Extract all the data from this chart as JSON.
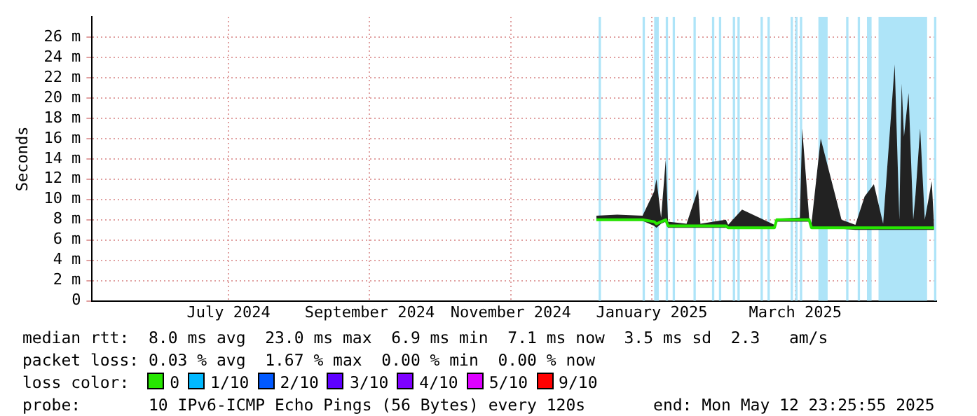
{
  "chart_data": {
    "type": "line",
    "ylabel": "Seconds",
    "legend": "bottom",
    "legend_title": "loss color:",
    "grid": true,
    "marker": "none",
    "xlim": [
      "2024-05-12",
      "2025-05-12"
    ],
    "xticks": [
      {
        "value": "2024-07-10",
        "label": "July 2024"
      },
      {
        "value": "2024-09-09",
        "label": "September 2024"
      },
      {
        "value": "2024-11-09",
        "label": "November 2024"
      },
      {
        "value": "2025-01-09",
        "label": "January 2025"
      },
      {
        "value": "2025-03-12",
        "label": "March 2025"
      }
    ],
    "ylim": [
      0,
      28
    ],
    "yticks": [
      0,
      {
        "value": 2,
        "label": "2 m"
      },
      {
        "value": 4,
        "label": "4 m"
      },
      {
        "value": 6,
        "label": "6 m"
      },
      {
        "value": 8,
        "label": "8 m"
      },
      {
        "value": 10,
        "label": "10 m"
      },
      {
        "value": 12,
        "label": "12 m"
      },
      {
        "value": 14,
        "label": "14 m"
      },
      {
        "value": 16,
        "label": "16 m"
      },
      {
        "value": 18,
        "label": "18 m"
      },
      {
        "value": 20,
        "label": "20 m"
      },
      {
        "value": 22,
        "label": "22 m"
      },
      {
        "value": 24,
        "label": "24 m"
      },
      {
        "value": 26,
        "label": "26 m"
      }
    ],
    "x": [
      "2024-12-16",
      "2024-12-25",
      "2025-01-05",
      "2025-01-10",
      "2025-01-11",
      "2025-01-13",
      "2025-01-15",
      "2025-01-16",
      "2025-01-24",
      "2025-01-29",
      "2025-01-30",
      "2025-02-10",
      "2025-02-11",
      "2025-02-17",
      "2025-03-03",
      "2025-03-04",
      "2025-03-14",
      "2025-03-15",
      "2025-03-18",
      "2025-03-19",
      "2025-03-23",
      "2025-03-24",
      "2025-04-01",
      "2025-04-07",
      "2025-04-11",
      "2025-04-15",
      "2025-04-19",
      "2025-04-24",
      "2025-04-26",
      "2025-04-27",
      "2025-04-28",
      "2025-04-30",
      "2025-05-02",
      "2025-05-03",
      "2025-05-05",
      "2025-05-07",
      "2025-05-10",
      "2025-05-11"
    ],
    "series": [
      {
        "name": "0",
        "color": "#26e600",
        "values": [
          8.0,
          8.0,
          8.0,
          7.8,
          7.6,
          7.8,
          8.0,
          7.4,
          7.4,
          7.4,
          7.4,
          7.4,
          7.2,
          7.2,
          7.2,
          8.0,
          8.0,
          8.0,
          8.0,
          7.2,
          7.2,
          7.2,
          7.2,
          7.2,
          7.2,
          7.2,
          7.2,
          7.2,
          7.2,
          7.2,
          7.2,
          7.2,
          7.2,
          7.2,
          7.2,
          7.2,
          7.2,
          7.2
        ],
        "lower": [
          7.9,
          7.9,
          7.9,
          7.4,
          7.2,
          7.6,
          7.8,
          7.2,
          7.2,
          7.2,
          7.2,
          7.2,
          7.1,
          7.1,
          7.1,
          7.8,
          7.8,
          7.8,
          7.8,
          7.1,
          7.1,
          7.1,
          7.1,
          7.0,
          7.0,
          7.0,
          7.0,
          7.0,
          7.0,
          7.0,
          7.0,
          7.0,
          7.0,
          7.0,
          7.0,
          7.0,
          7.0,
          7.0
        ],
        "upper": [
          8.4,
          8.5,
          8.4,
          10.8,
          12.0,
          8.2,
          13.9,
          7.8,
          7.6,
          11.0,
          7.6,
          8.0,
          7.5,
          9.0,
          7.5,
          8.1,
          8.2,
          17.0,
          8.2,
          7.6,
          16.0,
          15.1,
          8.0,
          7.5,
          10.3,
          11.5,
          7.6,
          23.3,
          8.0,
          21.4,
          16.2,
          20.5,
          8.0,
          10.5,
          17.0,
          8.0,
          11.8,
          7.5
        ]
      },
      {
        "name": "1/10",
        "color": "#00b8ff",
        "values": [
          null,
          null,
          null,
          null,
          null,
          null,
          null,
          null,
          null,
          null,
          null,
          null,
          null,
          null,
          null,
          null,
          null,
          null,
          null,
          null,
          null,
          null,
          null,
          null,
          null,
          null,
          null,
          null,
          null,
          null,
          null,
          null,
          null,
          null,
          null,
          null,
          null,
          null
        ]
      },
      {
        "name": "2/10",
        "color": "#0059ff",
        "values": [
          null,
          null,
          null,
          null,
          null,
          null,
          null,
          null,
          null,
          null,
          null,
          null,
          null,
          null,
          null,
          null,
          null,
          null,
          null,
          null,
          null,
          null,
          null,
          null,
          null,
          null,
          null,
          null,
          null,
          null,
          null,
          null,
          null,
          null,
          null,
          null,
          null,
          null
        ]
      },
      {
        "name": "3/10",
        "color": "#5e00ff",
        "values": [
          null,
          null,
          null,
          null,
          null,
          null,
          null,
          null,
          null,
          null,
          null,
          null,
          null,
          null,
          null,
          null,
          null,
          null,
          null,
          null,
          null,
          null,
          null,
          null,
          null,
          null,
          null,
          null,
          null,
          null,
          null,
          null,
          null,
          null,
          null,
          null,
          null,
          null
        ]
      },
      {
        "name": "4/10",
        "color": "#7e00ff",
        "values": [
          null,
          null,
          null,
          null,
          null,
          null,
          null,
          null,
          null,
          null,
          null,
          null,
          null,
          null,
          null,
          null,
          null,
          null,
          null,
          null,
          null,
          null,
          null,
          null,
          null,
          null,
          null,
          null,
          null,
          null,
          null,
          null,
          null,
          null,
          null,
          null,
          null,
          null
        ]
      },
      {
        "name": "5/10",
        "color": "#dd00ff",
        "values": [
          null,
          null,
          null,
          null,
          null,
          null,
          null,
          null,
          null,
          null,
          null,
          null,
          null,
          null,
          null,
          null,
          null,
          null,
          null,
          null,
          null,
          null,
          null,
          null,
          null,
          null,
          null,
          null,
          null,
          null,
          null,
          null,
          null,
          null,
          null,
          null,
          null,
          null
        ]
      },
      {
        "name": "9/10",
        "color": "#ff0000",
        "values": [
          null,
          null,
          null,
          null,
          null,
          null,
          null,
          null,
          null,
          null,
          null,
          null,
          null,
          null,
          null,
          null,
          null,
          null,
          null,
          null,
          null,
          null,
          null,
          null,
          null,
          null,
          null,
          null,
          null,
          null,
          null,
          null,
          null,
          null,
          null,
          null,
          null,
          null
        ]
      }
    ],
    "bands": [
      {
        "axis": "x",
        "from": "2024-12-17",
        "to": "2024-12-18",
        "color": "#aee4f8"
      },
      {
        "axis": "x",
        "from": "2025-01-05",
        "to": "2025-01-06",
        "color": "#aee4f8"
      },
      {
        "axis": "x",
        "from": "2025-01-10",
        "to": "2025-01-12",
        "color": "#aee4f8"
      },
      {
        "axis": "x",
        "from": "2025-01-15",
        "to": "2025-01-16",
        "color": "#aee4f8"
      },
      {
        "axis": "x",
        "from": "2025-01-18",
        "to": "2025-01-19",
        "color": "#aee4f8"
      },
      {
        "axis": "x",
        "from": "2025-01-27",
        "to": "2025-01-28",
        "color": "#aee4f8"
      },
      {
        "axis": "x",
        "from": "2025-02-04",
        "to": "2025-02-05",
        "color": "#aee4f8"
      },
      {
        "axis": "x",
        "from": "2025-02-07",
        "to": "2025-02-08",
        "color": "#aee4f8"
      },
      {
        "axis": "x",
        "from": "2025-02-13",
        "to": "2025-02-14",
        "color": "#aee4f8"
      },
      {
        "axis": "x",
        "from": "2025-02-15",
        "to": "2025-02-16",
        "color": "#aee4f8"
      },
      {
        "axis": "x",
        "from": "2025-02-25",
        "to": "2025-02-26",
        "color": "#aee4f8"
      },
      {
        "axis": "x",
        "from": "2025-02-28",
        "to": "2025-03-01",
        "color": "#aee4f8"
      },
      {
        "axis": "x",
        "from": "2025-03-10",
        "to": "2025-03-11",
        "color": "#aee4f8"
      },
      {
        "axis": "x",
        "from": "2025-03-12",
        "to": "2025-03-13",
        "color": "#aee4f8"
      },
      {
        "axis": "x",
        "from": "2025-03-14",
        "to": "2025-03-15",
        "color": "#aee4f8"
      },
      {
        "axis": "x",
        "from": "2025-03-22",
        "to": "2025-03-26",
        "color": "#aee4f8"
      },
      {
        "axis": "x",
        "from": "2025-04-03",
        "to": "2025-04-04",
        "color": "#aee4f8"
      },
      {
        "axis": "x",
        "from": "2025-04-08",
        "to": "2025-04-09",
        "color": "#aee4f8"
      },
      {
        "axis": "x",
        "from": "2025-04-12",
        "to": "2025-04-14",
        "color": "#aee4f8"
      },
      {
        "axis": "x",
        "from": "2025-04-17",
        "to": "2025-05-08",
        "color": "#aee4f8"
      },
      {
        "axis": "x",
        "from": "2025-05-11",
        "to": "2025-05-12",
        "color": "#aee4f8"
      }
    ],
    "annotations": [
      "median rtt:  8.0 ms avg  23.0 ms max  6.9 ms min  7.1 ms now  3.5 ms sd  2.3   am/s",
      "packet loss: 0.03 % avg  1.67 % max  0.00 % min  0.00 % now",
      "probe:       10 IPv6-ICMP Echo Pings (56 Bytes) every 120s       end: Mon May 12 23:25:55 2025"
    ]
  }
}
